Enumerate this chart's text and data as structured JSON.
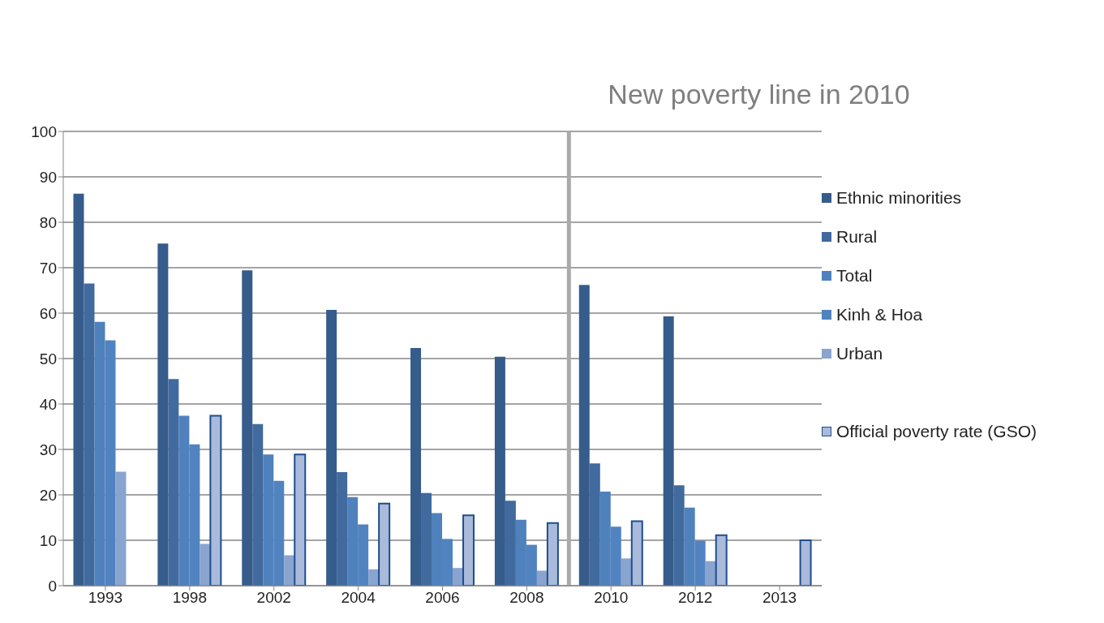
{
  "chart_data": {
    "type": "bar",
    "categories": [
      "1993",
      "1998",
      "2002",
      "2004",
      "2006",
      "2008",
      "2010",
      "2012",
      "2013"
    ],
    "series": [
      {
        "name": "Ethnic minorities",
        "color": "#365c8b",
        "values": [
          86.3,
          75.3,
          69.4,
          60.7,
          52.3,
          50.4,
          66.2,
          59.3,
          null
        ]
      },
      {
        "name": "Rural",
        "color": "#416a9e",
        "values": [
          66.5,
          45.5,
          35.6,
          25,
          20.4,
          18.7,
          26.9,
          22.1,
          null
        ]
      },
      {
        "name": "Total",
        "color": "#4f81bd",
        "values": [
          58.1,
          37.4,
          28.9,
          19.5,
          16,
          14.5,
          20.7,
          17.2,
          null
        ]
      },
      {
        "name": "Kinh & Hoa",
        "color": "#5183c0",
        "values": [
          54,
          31.1,
          23.1,
          13.5,
          10.3,
          9,
          13,
          9.9,
          null
        ]
      },
      {
        "name": "Urban",
        "color": "#89a4cf",
        "values": [
          25.1,
          9.2,
          6.7,
          3.6,
          3.9,
          3.3,
          6,
          5.4,
          null
        ]
      },
      {
        "name": "Official poverty rate (GSO)",
        "color": "#a9badb",
        "values": [
          null,
          37.4,
          28.9,
          18.1,
          15.5,
          13.8,
          14.2,
          11.1,
          10
        ]
      }
    ],
    "ylim": [
      0,
      100
    ],
    "yticks": [
      0,
      10,
      20,
      30,
      40,
      50,
      60,
      70,
      80,
      90,
      100
    ],
    "grid": "y",
    "legend": "right",
    "ref_lines": [
      {
        "axis": "x",
        "value": "2010",
        "label": "New poverty line in 2010",
        "color": "#aaaaaa"
      }
    ]
  }
}
